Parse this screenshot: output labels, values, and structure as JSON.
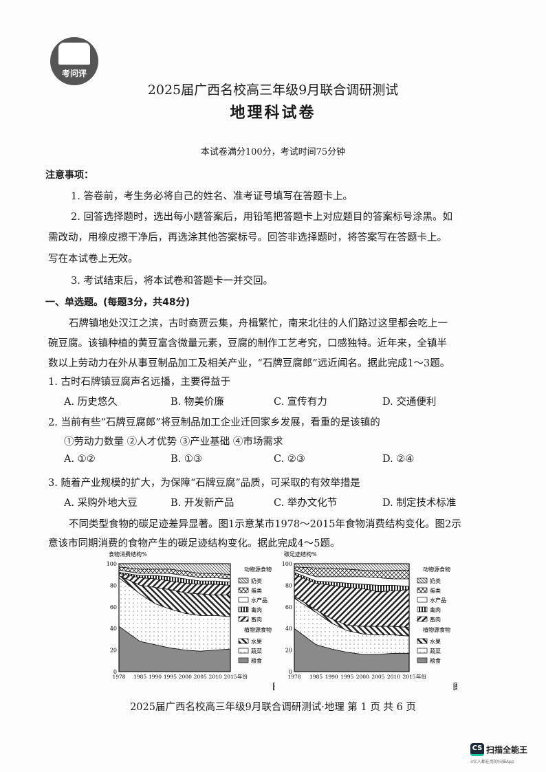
{
  "logo_text": "考问评",
  "header": {
    "title": "2025届广西名校高三年级9月联合调研测试",
    "subject": "地理科试卷",
    "info": "本试卷满分100分，考试时间75分钟"
  },
  "notice": {
    "heading": "注意事项：",
    "items": [
      "1. 答卷前，考生务必将自己的姓名、准考证号填写在答题卡上。",
      "2. 回答选择题时，选出每小题答案后，用铅笔把答题卡上对应题目的答案标号涂黑。如",
      "需改动，用橡皮擦干净后，再选涂其他答案标号。回答非选择题时，将答案写在答题卡上。",
      "写在本试卷上无效。",
      "3. 考试结束后，将本试卷和答题卡一并交回。"
    ]
  },
  "section": "一、单选题。(每题3分，共48分)",
  "passage1": [
    "石牌镇地处汉江之滨，古时商贾云集，舟楫繁忙，南来北往的人们路过这里都会吃上一",
    "碗豆腐。该镇种植的黄豆富含微量元素，豆腐的制作工艺考究，口感独特。近年来，全镇半",
    "数以上劳动力在外从事豆制品加工及相关产业，“石牌豆腐郎”远近闻名。据此完成1～3题。"
  ],
  "questions": [
    {
      "stem": "1.  古时石牌镇豆腐声名远播，主要得益于",
      "options": [
        "A.  历史悠久",
        "B.  物美价廉",
        "C.  宣传有力",
        "D.  交通便利"
      ]
    },
    {
      "stem": "2.  当前有些“石牌豆腐郎”将豆制品加工企业迁回家乡发展，看重的是该镇的",
      "sub": "①劳动力数量    ②人才优势   ③产业基础   ④市场需求",
      "options": [
        "A.  ①②",
        "B.  ①③",
        "C.  ②③",
        "D.  ②④"
      ]
    },
    {
      "stem": "3.  随着产业规模的扩大，为保障“石牌豆腐”品质，可采取的有效举措是",
      "options": [
        "A.  采购外地大豆",
        "B.  开发新产品",
        "C.  举办文化节",
        "D.  制定技术标准"
      ]
    }
  ],
  "passage2": [
    "不同类型食物的碳足迹差异显著。图1示意某市1978～2015年食物消费结构变化。图2示",
    "意该市同期消费的食物产生的碳足迹结构变化。据此完成4～5题。"
  ],
  "chart_data": [
    {
      "type": "area",
      "stacked": true,
      "caption": "图1",
      "ylabel": "食物消费结构%",
      "xlabel": "年份",
      "ylim": [
        0,
        100
      ],
      "yticks": [
        0,
        20,
        40,
        60,
        80,
        100
      ],
      "x": [
        1978,
        1985,
        1990,
        1995,
        2000,
        2005,
        2010,
        2015
      ],
      "legend_groups": [
        "动物源食物",
        "植物源食物"
      ],
      "series": [
        {
          "name": "粮食",
          "values": [
            42,
            28,
            25,
            22,
            20,
            19,
            20,
            21
          ]
        },
        {
          "name": "蔬菜",
          "values": [
            45,
            44,
            38,
            36,
            34,
            33,
            32,
            30
          ]
        },
        {
          "name": "水果",
          "values": [
            2,
            8,
            15,
            18,
            19,
            20,
            19,
            20
          ]
        },
        {
          "name": "畜肉",
          "values": [
            2,
            7,
            8,
            8,
            9,
            9,
            10,
            9
          ]
        },
        {
          "name": "禽肉",
          "values": [
            1,
            2,
            3,
            4,
            4,
            3,
            3,
            3
          ]
        },
        {
          "name": "水产品",
          "values": [
            2,
            2,
            2,
            3,
            3,
            3,
            3,
            3
          ]
        },
        {
          "name": "蛋类",
          "values": [
            3,
            4,
            4,
            4,
            4,
            4,
            4,
            4
          ]
        },
        {
          "name": "奶类",
          "values": [
            3,
            5,
            5,
            5,
            7,
            9,
            9,
            10
          ]
        }
      ]
    },
    {
      "type": "area",
      "stacked": true,
      "caption": "图2",
      "ylabel": "碳足迹结构%",
      "xlabel": "年份",
      "ylim": [
        0,
        100
      ],
      "yticks": [
        0,
        20,
        40,
        60,
        80,
        100
      ],
      "x": [
        1978,
        1985,
        1990,
        1995,
        2000,
        2005,
        2010,
        2015
      ],
      "legend_groups": [
        "动物源食物",
        "植物源食物"
      ],
      "series": [
        {
          "name": "粮食",
          "values": [
            40,
            25,
            21,
            18,
            16,
            16,
            17,
            17
          ]
        },
        {
          "name": "蔬菜",
          "values": [
            28,
            30,
            24,
            20,
            19,
            18,
            17,
            16
          ]
        },
        {
          "name": "水果",
          "values": [
            2,
            2,
            4,
            5,
            7,
            8,
            8,
            8
          ]
        },
        {
          "name": "畜肉",
          "values": [
            20,
            25,
            31,
            35,
            35,
            32,
            33,
            35
          ]
        },
        {
          "name": "禽肉",
          "values": [
            2,
            2,
            3,
            4,
            4,
            6,
            5,
            3
          ]
        },
        {
          "name": "水产品",
          "values": [
            2,
            4,
            5,
            6,
            7,
            7,
            6,
            7
          ]
        },
        {
          "name": "蛋类",
          "values": [
            3,
            8,
            8,
            7,
            6,
            6,
            8,
            8
          ]
        },
        {
          "name": "奶类",
          "values": [
            3,
            4,
            4,
            5,
            6,
            7,
            6,
            6
          ]
        }
      ]
    }
  ],
  "footer": "2025届广西名校高三年级9月联合调研测试·地理   第 1 页 共 6 页",
  "watermark": {
    "icon": "CS",
    "name": "扫描全能王",
    "sub": "3亿人都在用的扫描App"
  }
}
